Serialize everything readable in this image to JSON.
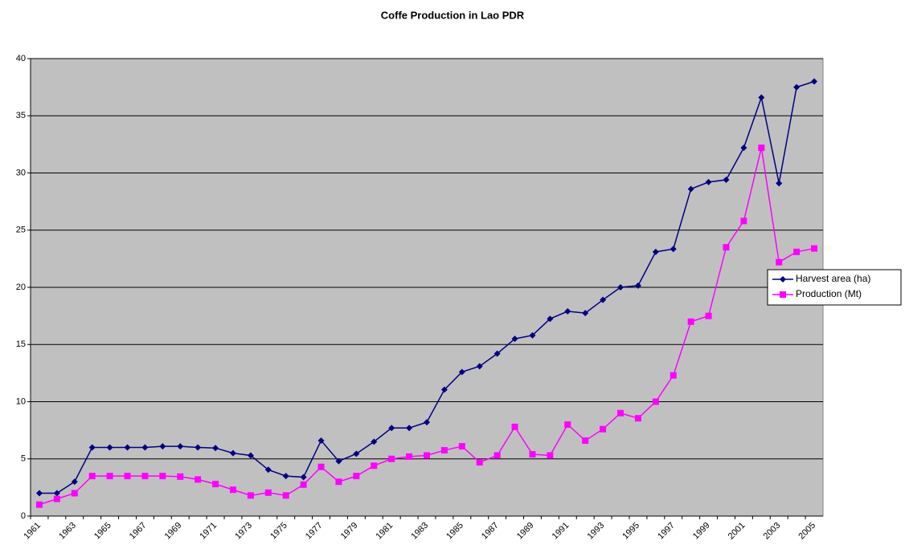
{
  "chart_data": {
    "type": "line",
    "title": "Coffe Production in Lao PDR",
    "categories": [
      "1961",
      null,
      "1963",
      null,
      "1965",
      null,
      "1967",
      null,
      "1969",
      null,
      "1971",
      null,
      "1973",
      null,
      "1975",
      null,
      "1977",
      null,
      "1979",
      null,
      "1981",
      null,
      "1983",
      null,
      "1985",
      null,
      "1987",
      null,
      "1989",
      null,
      "1991",
      null,
      "1993",
      null,
      "1995",
      null,
      "1997",
      null,
      "1999",
      null,
      "2001",
      null,
      "2003",
      null,
      "2005"
    ],
    "series": [
      {
        "name": "Harvest area (ha)",
        "color": "#000080",
        "marker": "diamond",
        "values": [
          2.0,
          2.0,
          3.0,
          6.0,
          6.0,
          6.0,
          6.0,
          6.1,
          6.1,
          6.0,
          5.95,
          5.5,
          5.3,
          4.05,
          3.5,
          3.4,
          6.6,
          4.8,
          5.45,
          6.5,
          7.7,
          7.7,
          8.2,
          11.05,
          12.6,
          13.1,
          14.2,
          15.5,
          15.8,
          17.25,
          17.9,
          17.75,
          18.9,
          20.0,
          20.15,
          23.1,
          23.35,
          28.6,
          29.2,
          29.4,
          32.2,
          36.6,
          29.1,
          37.5,
          38.0
        ]
      },
      {
        "name": "Production (Mt)",
        "color": "#ff00ff",
        "marker": "square",
        "values": [
          1.0,
          1.5,
          2.0,
          3.5,
          3.5,
          3.5,
          3.5,
          3.5,
          3.45,
          3.2,
          2.8,
          2.3,
          1.8,
          2.05,
          1.8,
          2.75,
          4.3,
          3.0,
          3.5,
          4.4,
          5.0,
          5.2,
          5.3,
          5.75,
          6.1,
          4.7,
          5.3,
          7.8,
          5.4,
          5.3,
          8.0,
          6.6,
          7.6,
          9.0,
          8.55,
          10.0,
          12.3,
          17.0,
          17.5,
          23.5,
          25.8,
          32.2,
          22.2,
          23.1,
          23.4
        ]
      }
    ],
    "ylim": [
      0,
      40
    ],
    "yticks": [
      0,
      5,
      10,
      15,
      20,
      25,
      30,
      35,
      40
    ],
    "grid": true,
    "legend": "right"
  }
}
